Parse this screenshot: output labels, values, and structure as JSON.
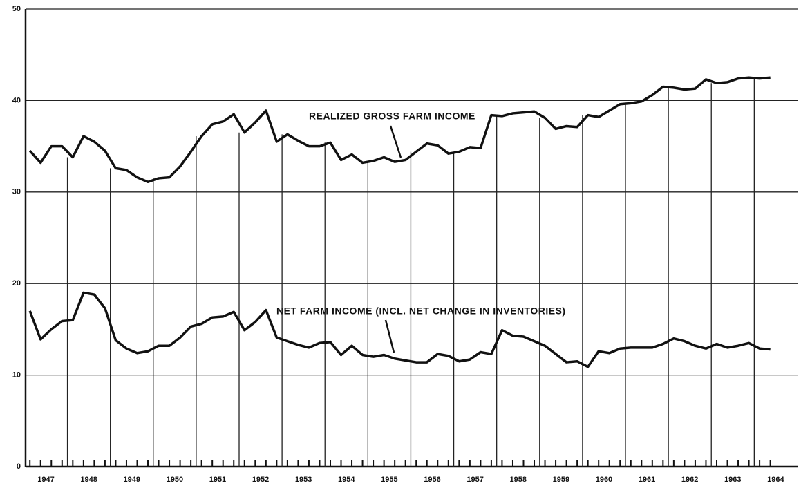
{
  "chart_data": {
    "type": "line",
    "x": [
      1947,
      1947.25,
      1947.5,
      1947.75,
      1948,
      1948.25,
      1948.5,
      1948.75,
      1949,
      1949.25,
      1949.5,
      1949.75,
      1950,
      1950.25,
      1950.5,
      1950.75,
      1951,
      1951.25,
      1951.5,
      1951.75,
      1952,
      1952.25,
      1952.5,
      1952.75,
      1953,
      1953.25,
      1953.5,
      1953.75,
      1954,
      1954.25,
      1954.5,
      1954.75,
      1955,
      1955.25,
      1955.5,
      1955.75,
      1956,
      1956.25,
      1956.5,
      1956.75,
      1957,
      1957.25,
      1957.5,
      1957.75,
      1958,
      1958.25,
      1958.5,
      1958.75,
      1959,
      1959.25,
      1959.5,
      1959.75,
      1960,
      1960.25,
      1960.5,
      1960.75,
      1961,
      1961.25,
      1961.5,
      1961.75,
      1962,
      1962.25,
      1962.5,
      1962.75,
      1963,
      1963.25,
      1963.5,
      1963.75,
      1964,
      1964.25
    ],
    "series": [
      {
        "name": "REALIZED GROSS FARM INCOME",
        "color": "#111111",
        "values": [
          34.5,
          33.2,
          35,
          35,
          33.8,
          36.1,
          35.5,
          34.5,
          32.6,
          32.4,
          31.6,
          31.1,
          31.5,
          31.6,
          32.8,
          34.4,
          36.1,
          37.4,
          37.7,
          38.5,
          36.5,
          37.6,
          38.9,
          35.5,
          36.3,
          35.6,
          35,
          35,
          35.4,
          33.5,
          34.1,
          33.2,
          33.4,
          33.8,
          33.3,
          33.5,
          34.4,
          35.3,
          35.1,
          34.2,
          34.4,
          34.9,
          34.8,
          38.4,
          38.3,
          38.6,
          38.7,
          38.8,
          38.1,
          36.9,
          37.2,
          37.1,
          38.4,
          38.2,
          38.9,
          39.6,
          39.7,
          39.9,
          40.6,
          41.5,
          41.4,
          41.2,
          41.3,
          42.3,
          41.9,
          42,
          42.4,
          42.5,
          42.4,
          42.5
        ]
      },
      {
        "name": "NET FARM INCOME (INCL. NET CHANGE IN INVENTORIES)",
        "color": "#111111",
        "values": [
          17,
          13.9,
          15,
          15.9,
          16,
          19,
          18.8,
          17.3,
          13.8,
          12.9,
          12.4,
          12.6,
          13.2,
          13.2,
          14.1,
          15.3,
          15.6,
          16.3,
          16.4,
          16.9,
          14.9,
          15.8,
          17.1,
          14.1,
          13.7,
          13.3,
          13,
          13.5,
          13.6,
          12.2,
          13.2,
          12.2,
          12,
          12.2,
          11.8,
          11.6,
          11.4,
          11.4,
          12.3,
          12.1,
          11.5,
          11.7,
          12.5,
          12.3,
          14.9,
          14.3,
          14.2,
          13.7,
          13.2,
          12.3,
          11.4,
          11.5,
          10.9,
          12.6,
          12.4,
          12.9,
          13,
          13,
          13,
          13.4,
          14,
          13.7,
          13.2,
          12.9,
          13.4,
          13,
          13.2,
          13.5,
          12.9,
          12.8
        ]
      }
    ],
    "xlim": [
      1946.9,
      1964.9
    ],
    "xticks": [
      {
        "value": 1947.375,
        "label": "1947"
      },
      {
        "value": 1948.375,
        "label": "1948"
      },
      {
        "value": 1949.375,
        "label": "1949"
      },
      {
        "value": 1950.375,
        "label": "1950"
      },
      {
        "value": 1951.375,
        "label": "1951"
      },
      {
        "value": 1952.375,
        "label": "1952"
      },
      {
        "value": 1953.375,
        "label": "1953"
      },
      {
        "value": 1954.375,
        "label": "1954"
      },
      {
        "value": 1955.375,
        "label": "1955"
      },
      {
        "value": 1956.375,
        "label": "1956"
      },
      {
        "value": 1957.375,
        "label": "1957"
      },
      {
        "value": 1958.375,
        "label": "1958"
      },
      {
        "value": 1959.375,
        "label": "1959"
      },
      {
        "value": 1960.375,
        "label": "1960"
      },
      {
        "value": 1961.375,
        "label": "1961"
      },
      {
        "value": 1962.375,
        "label": "1962"
      },
      {
        "value": 1963.375,
        "label": "1963"
      },
      {
        "value": 1964.375,
        "label": "1964"
      }
    ],
    "ylim": [
      0,
      50
    ],
    "yticks": [
      0,
      10,
      20,
      30,
      40,
      50
    ],
    "grid": true
  }
}
